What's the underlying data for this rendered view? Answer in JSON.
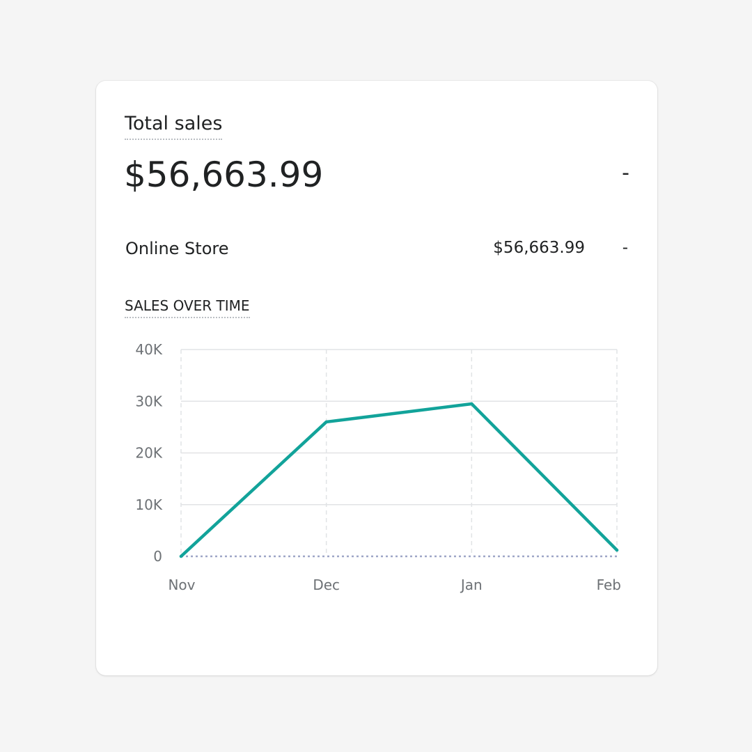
{
  "card": {
    "title": "Total sales",
    "total_value": "$56,663.99",
    "total_change": "-",
    "breakdown": [
      {
        "label": "Online Store",
        "value": "$56,663.99",
        "change": "-"
      }
    ],
    "section_title": "SALES OVER TIME"
  },
  "colors": {
    "line": "#12a39a",
    "grid": "#e1e3e5",
    "baseline": "#9ea6c7",
    "tick_text": "#6d7175",
    "text": "#202223"
  },
  "chart_data": {
    "type": "line",
    "x": [
      "Nov",
      "Dec",
      "Jan",
      "Feb"
    ],
    "y_ticks": [
      "0",
      "10K",
      "20K",
      "30K",
      "40K"
    ],
    "ylim": [
      0,
      40000
    ],
    "series": [
      {
        "values": [
          0,
          26000,
          29500,
          1200
        ]
      }
    ],
    "grid": true
  }
}
